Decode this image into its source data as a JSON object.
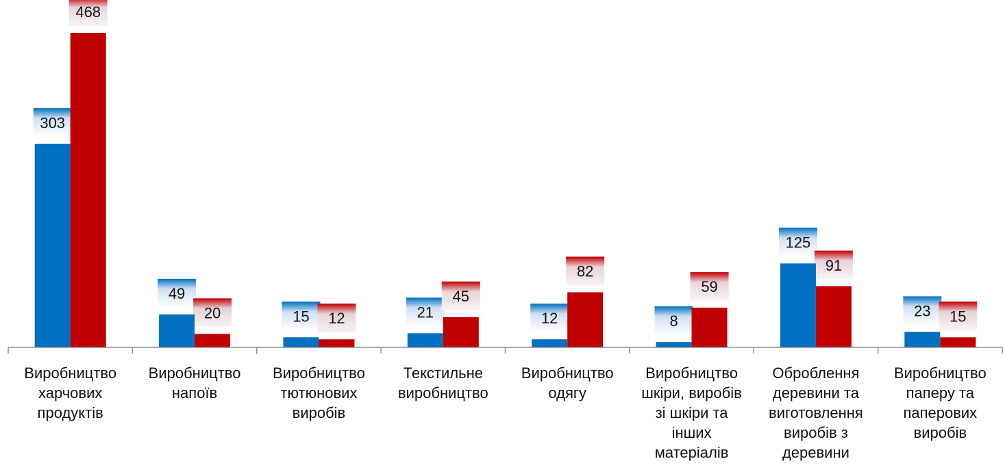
{
  "chart_data": {
    "type": "bar",
    "categories": [
      [
        "Виробництво",
        "харчових",
        "продуктів"
      ],
      [
        "Виробництво",
        "напоїв"
      ],
      [
        "Виробництво",
        "тютюнових",
        "виробів"
      ],
      [
        "Текстильне",
        "виробництво"
      ],
      [
        "Виробництво",
        "одягу"
      ],
      [
        "Виробництво",
        "шкіри, виробів",
        "зі шкіри та",
        "інших",
        "матеріалів"
      ],
      [
        "Оброблення",
        "деревини та",
        "виготовлення",
        "виробів з",
        "деревини"
      ],
      [
        "Виробництво",
        "паперу та",
        "паперових",
        "виробів"
      ]
    ],
    "series": [
      {
        "values": [
          303,
          49,
          15,
          21,
          12,
          8,
          125,
          23
        ],
        "color": "#0070C0"
      },
      {
        "values": [
          468,
          20,
          12,
          45,
          82,
          59,
          91,
          15
        ],
        "color": "#C00000"
      }
    ],
    "data_labels": true,
    "ylim": [
      0,
      468
    ],
    "grid": false,
    "legend": "none"
  }
}
